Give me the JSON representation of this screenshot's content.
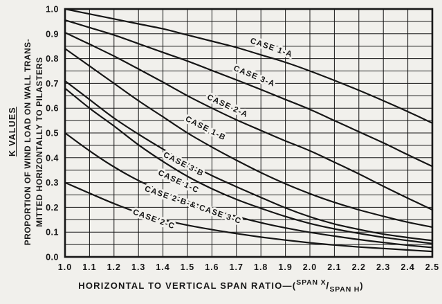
{
  "figure": {
    "background": "#f1f0ec",
    "ink": "#161616"
  },
  "chart_data": {
    "type": "line",
    "title": "",
    "ylabel_primary": "K VALUES",
    "ylabel_secondary_line1": "PROPORTION OF WIND LOAD ON WALL TRANS-",
    "ylabel_secondary_line2": "MITTED HORIZONTALLY TO PILASTERS",
    "xlabel": {
      "prefix": "HORIZONTAL TO VERTICAL SPAN RATIO—(",
      "sup": "SPAN X",
      "slash": "/",
      "sub": "SPAN H",
      "suffix": ")"
    },
    "xlim": [
      1.0,
      2.5
    ],
    "ylim": [
      0.0,
      1.0
    ],
    "grid": {
      "on": true,
      "x_step": 0.1,
      "y_step": 0.05
    },
    "legend_position": "labels-on-curves",
    "x_ticks": [
      "1.0",
      "1.1",
      "1.2",
      "1.3",
      "1.4",
      "1.5",
      "1.6",
      "1.7",
      "1.8",
      "1.9",
      "2.0",
      "2.1",
      "2.2",
      "2.3",
      "2.4",
      "2.5"
    ],
    "y_ticks": [
      "1.0",
      "0.9",
      "0.8",
      "0.7",
      "0.6",
      "0.5",
      "0.4",
      "0.3",
      "0.2",
      "0.1",
      "0.0"
    ],
    "x": [
      1.0,
      1.1,
      1.2,
      1.3,
      1.4,
      1.5,
      1.6,
      1.7,
      1.8,
      1.9,
      2.0,
      2.1,
      2.2,
      2.3,
      2.4,
      2.5
    ],
    "series": [
      {
        "name": "CASE 1-A",
        "values": [
          1.0,
          0.98,
          0.96,
          0.94,
          0.92,
          0.895,
          0.87,
          0.845,
          0.815,
          0.785,
          0.75,
          0.712,
          0.672,
          0.63,
          0.586,
          0.54
        ],
        "label": {
          "x": 1.84,
          "k": 0.835,
          "angle": 19
        }
      },
      {
        "name": "CASE 3-A",
        "values": [
          0.955,
          0.925,
          0.895,
          0.86,
          0.825,
          0.79,
          0.752,
          0.714,
          0.675,
          0.635,
          0.595,
          0.55,
          0.505,
          0.46,
          0.412,
          0.365
        ],
        "label": {
          "x": 1.77,
          "k": 0.72,
          "angle": 22
        }
      },
      {
        "name": "CASE 2-A",
        "values": [
          0.905,
          0.858,
          0.81,
          0.758,
          0.705,
          0.65,
          0.6,
          0.553,
          0.51,
          0.468,
          0.428,
          0.382,
          0.335,
          0.285,
          0.237,
          0.19
        ],
        "label": {
          "x": 1.66,
          "k": 0.6,
          "angle": 25
        }
      },
      {
        "name": "CASE 1-B",
        "values": [
          0.84,
          0.77,
          0.7,
          0.63,
          0.565,
          0.5,
          0.443,
          0.39,
          0.34,
          0.295,
          0.255,
          0.22,
          0.19,
          0.164,
          0.14,
          0.12
        ],
        "label": {
          "x": 1.57,
          "k": 0.51,
          "angle": 27
        }
      },
      {
        "name": "CASE 3-B",
        "values": [
          0.71,
          0.635,
          0.56,
          0.495,
          0.435,
          0.378,
          0.328,
          0.283,
          0.24,
          0.198,
          0.162,
          0.133,
          0.111,
          0.092,
          0.078,
          0.066
        ],
        "label": {
          "x": 1.48,
          "k": 0.365,
          "angle": 27
        }
      },
      {
        "name": "CASE 1-C",
        "values": [
          0.68,
          0.6,
          0.528,
          0.452,
          0.385,
          0.325,
          0.275,
          0.232,
          0.196,
          0.163,
          0.135,
          0.113,
          0.095,
          0.079,
          0.066,
          0.054
        ],
        "label": {
          "x": 1.46,
          "k": 0.295,
          "angle": 25
        }
      },
      {
        "name": "CASE 2-B-& CASE 3-C",
        "values": [
          0.5,
          0.428,
          0.363,
          0.308,
          0.263,
          0.225,
          0.192,
          0.163,
          0.138,
          0.117,
          0.099,
          0.084,
          0.07,
          0.058,
          0.047,
          0.038
        ],
        "label": {
          "x": 1.52,
          "k": 0.2,
          "angle": 19
        }
      },
      {
        "name": "CASE 2-C",
        "values": [
          0.3,
          0.257,
          0.215,
          0.178,
          0.15,
          0.128,
          0.11,
          0.094,
          0.08,
          0.068,
          0.057,
          0.048,
          0.04,
          0.034,
          0.028,
          0.022
        ],
        "label": {
          "x": 1.36,
          "k": 0.143,
          "angle": 20
        }
      }
    ]
  }
}
